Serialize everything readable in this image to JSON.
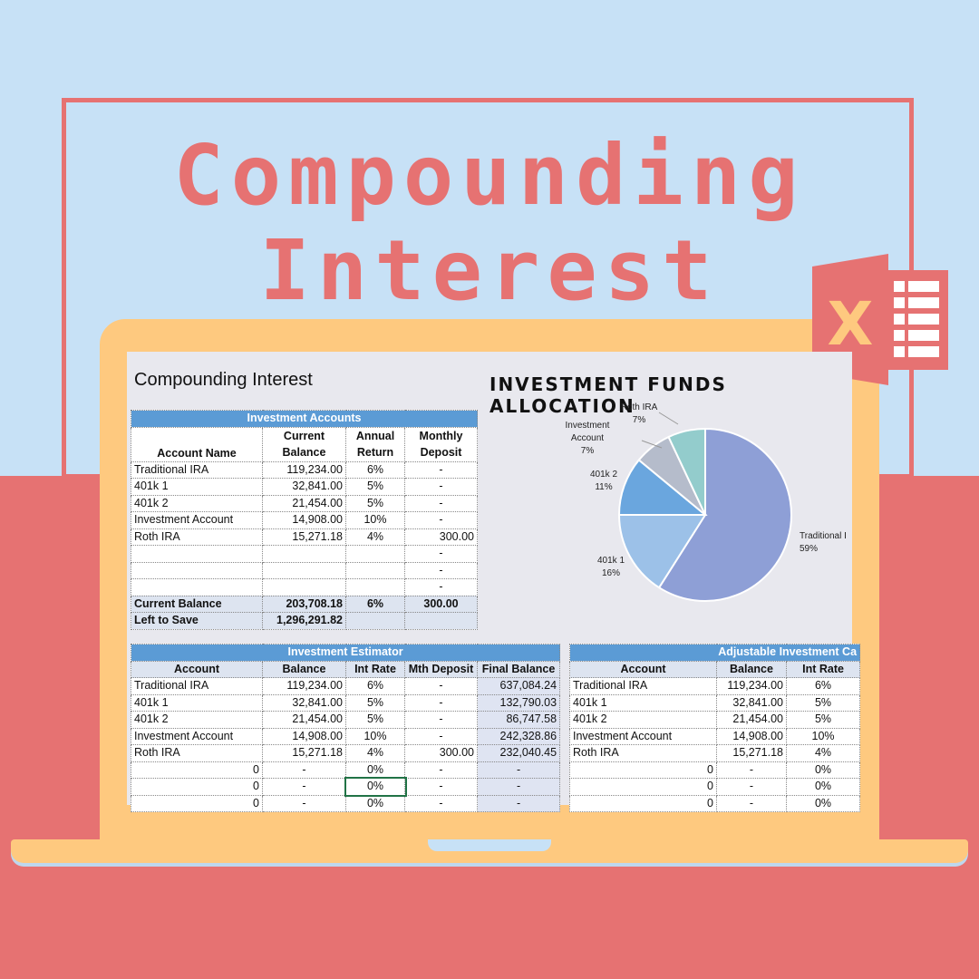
{
  "poster": {
    "headline_line1": "Compounding",
    "headline_line2": "Interest"
  },
  "icons": {
    "excel": "excel-icon",
    "excel_letter": "X"
  },
  "sheet": {
    "title": "Compounding Interest",
    "chart_title": "INVESTMENT FUNDS ALLOCATION",
    "accounts_table": {
      "header": "Investment Accounts",
      "columns": [
        "Account Name",
        "Current Balance",
        "Annual Return",
        "Monthly Deposit"
      ],
      "rows": [
        [
          "Traditional IRA",
          "119,234.00",
          "6%",
          "-"
        ],
        [
          "401k 1",
          "32,841.00",
          "5%",
          "-"
        ],
        [
          "401k 2",
          "21,454.00",
          "5%",
          "-"
        ],
        [
          "Investment Account",
          "14,908.00",
          "10%",
          "-"
        ],
        [
          "Roth IRA",
          "15,271.18",
          "4%",
          "300.00"
        ],
        [
          "",
          "",
          "",
          "-"
        ],
        [
          "",
          "",
          "",
          "-"
        ],
        [
          "",
          "",
          "",
          "-"
        ]
      ],
      "current_balance_label": "Current Balance",
      "current_balance_values": [
        "203,708.18",
        "6%",
        "300.00"
      ],
      "left_to_save_label": "Left to Save",
      "left_to_save_value": "1,296,291.82"
    },
    "estimator_table": {
      "header": "Investment Estimator",
      "columns": [
        "Account",
        "Balance",
        "Int Rate",
        "Mth Deposit",
        "Final Balance"
      ],
      "rows": [
        [
          "Traditional IRA",
          "119,234.00",
          "6%",
          "-",
          "637,084.24"
        ],
        [
          "401k 1",
          "32,841.00",
          "5%",
          "-",
          "132,790.03"
        ],
        [
          "401k 2",
          "21,454.00",
          "5%",
          "-",
          "86,747.58"
        ],
        [
          "Investment Account",
          "14,908.00",
          "10%",
          "-",
          "242,328.86"
        ],
        [
          "Roth IRA",
          "15,271.18",
          "4%",
          "300.00",
          "232,040.45"
        ],
        [
          "0",
          "-",
          "0%",
          "-",
          "-"
        ],
        [
          "0",
          "-",
          "0%",
          "-",
          "-"
        ],
        [
          "0",
          "-",
          "0%",
          "-",
          "-"
        ]
      ]
    },
    "adjustable_table": {
      "header": "Adjustable Investment Ca",
      "columns": [
        "Account",
        "Balance",
        "Int Rate"
      ],
      "rows": [
        [
          "Traditional IRA",
          "119,234.00",
          "6%"
        ],
        [
          "401k 1",
          "32,841.00",
          "5%"
        ],
        [
          "401k 2",
          "21,454.00",
          "5%"
        ],
        [
          "Investment Account",
          "14,908.00",
          "10%"
        ],
        [
          "Roth IRA",
          "15,271.18",
          "4%"
        ],
        [
          "0",
          "-",
          "0%"
        ],
        [
          "0",
          "-",
          "0%"
        ],
        [
          "0",
          "-",
          "0%"
        ]
      ]
    }
  },
  "chart_data": {
    "type": "pie",
    "title": "INVESTMENT FUNDS ALLOCATION",
    "slices": [
      {
        "label": "Traditional I",
        "pct_label": "59%",
        "value": 59,
        "color": "#8e9fd6"
      },
      {
        "label": "401k 1",
        "pct_label": "16%",
        "value": 16,
        "color": "#9cc1e8"
      },
      {
        "label": "401k 2",
        "pct_label": "11%",
        "value": 11,
        "color": "#6aa6de"
      },
      {
        "label": "Investment Account",
        "pct_label": "7%",
        "value": 7,
        "color": "#b5bccb"
      },
      {
        "label": "Roth IRA",
        "pct_label": "7%",
        "value": 7,
        "color": "#93cccc"
      }
    ]
  }
}
